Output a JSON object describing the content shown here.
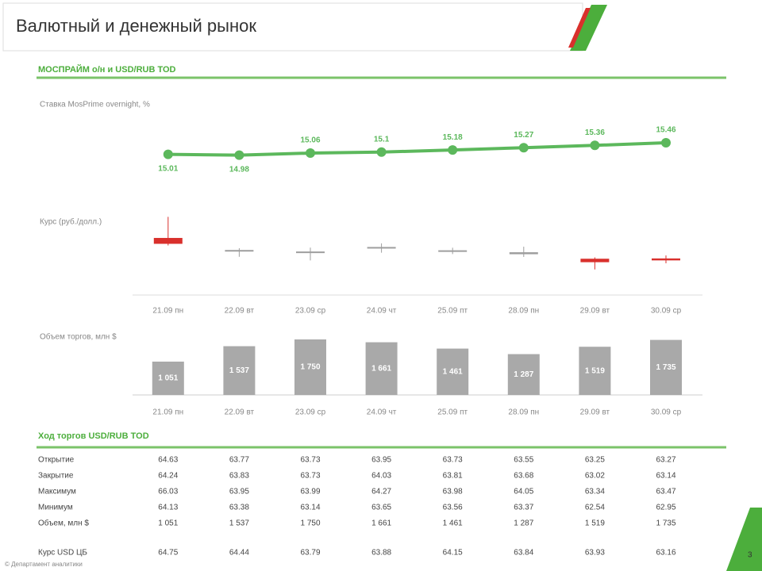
{
  "header": {
    "title": "Валютный и денежный рынок"
  },
  "chart_data": [
    {
      "type": "line",
      "title": "МОСПРАЙМ о/н и USD/RUB TOD",
      "subtitle": "Ставка MosPrime overnight, %",
      "categories": [
        "21.09 пн",
        "22.09 вт",
        "23.09 ср",
        "24.09 чт",
        "25.09 пт",
        "28.09 пн",
        "29.09 вт",
        "30.09 ср"
      ],
      "values": [
        15.01,
        14.98,
        15.06,
        15.1,
        15.18,
        15.27,
        15.36,
        15.46
      ],
      "color": "#5cb85c",
      "ylim": [
        13,
        17
      ]
    },
    {
      "type": "candlestick",
      "y_label": "Курс (руб./долл.)",
      "open": [
        64.63,
        63.77,
        63.73,
        63.95,
        63.73,
        63.55,
        63.25,
        63.27
      ],
      "close": [
        64.24,
        63.83,
        63.73,
        64.03,
        63.81,
        63.68,
        63.02,
        63.14
      ],
      "high": [
        66.03,
        63.95,
        63.99,
        64.27,
        63.98,
        64.05,
        63.34,
        63.47
      ],
      "low": [
        64.13,
        63.38,
        63.14,
        63.65,
        63.56,
        63.37,
        62.54,
        62.95
      ],
      "up_color": "#9e9e9e",
      "down_color": "#d9302c",
      "ylim": [
        62,
        67
      ]
    },
    {
      "type": "bar",
      "y_label": "Объем торгов, млн $",
      "values": [
        1051,
        1537,
        1750,
        1661,
        1461,
        1287,
        1519,
        1735
      ],
      "value_labels": [
        "1 051",
        "1 537",
        "1 750",
        "1 661",
        "1 461",
        "1 287",
        "1 519",
        "1 735"
      ],
      "color": "#a9a9a9",
      "ylim": [
        0,
        2000
      ]
    }
  ],
  "table": {
    "title": "Ход торгов USD/RUB TOD",
    "row_labels": [
      "Открытие",
      "Закрытие",
      "Максимум",
      "Минимум",
      "Объем, млн $",
      "Курс USD ЦБ"
    ],
    "cb_rate": [
      64.75,
      64.44,
      63.79,
      63.88,
      64.15,
      63.84,
      63.93,
      63.16
    ]
  },
  "footer": {
    "note": "© Департамент аналитики",
    "page": "3"
  }
}
